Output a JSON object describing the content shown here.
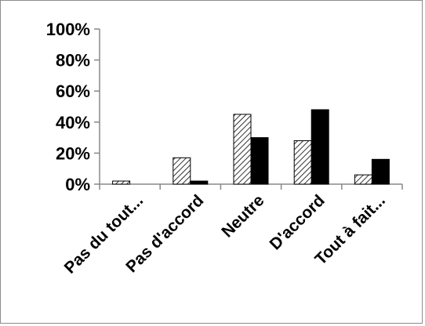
{
  "chart_data": {
    "type": "bar",
    "categories": [
      "Pas du tout...",
      "Pas d'accord",
      "Neutre",
      "D'accord",
      "Tout à fait..."
    ],
    "series": [
      {
        "pattern": "hatched",
        "values": [
          2,
          17,
          45,
          28,
          6
        ]
      },
      {
        "pattern": "solid-black",
        "values": [
          0,
          2,
          30,
          48,
          16
        ]
      }
    ],
    "ylim": [
      0,
      100
    ],
    "yticks": [
      "0%",
      "20%",
      "40%",
      "60%",
      "80%",
      "100%"
    ],
    "grid": false,
    "legend": "none",
    "colors": {
      "hatched_fill": "#ffffff",
      "hatched_line": "#000000",
      "solid": "#000000"
    }
  }
}
